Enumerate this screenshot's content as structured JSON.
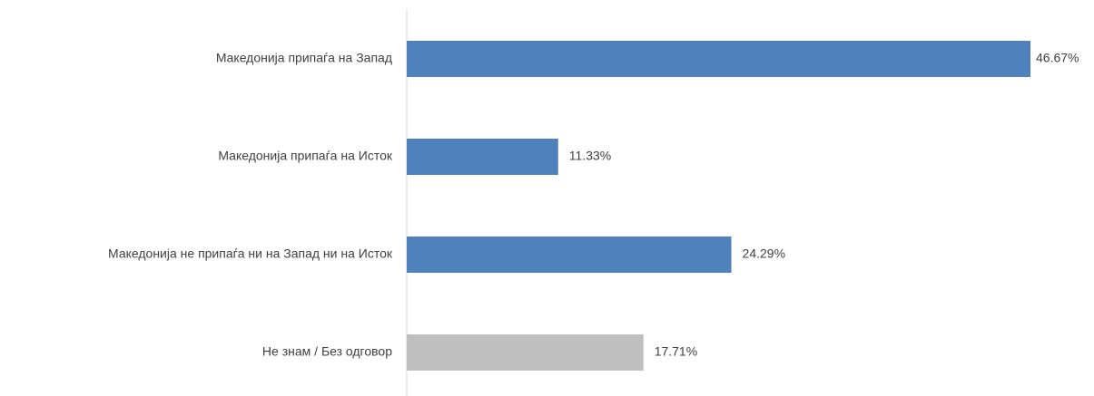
{
  "chart_data": {
    "type": "barh",
    "categories": [
      "Македонија припаѓа на Запад",
      "Македонија припаѓа на Исток",
      "Македонија не припаѓа ни на Запад ни на Исток",
      "Не знам / Без одговор"
    ],
    "values": [
      46.67,
      11.33,
      24.29,
      17.71
    ],
    "value_labels": [
      "46.67%",
      "11.33%",
      "24.29%",
      "17.71%"
    ],
    "colors": [
      "#4f81bd",
      "#4f81bd",
      "#4f81bd",
      "#bfbfbf"
    ]
  }
}
